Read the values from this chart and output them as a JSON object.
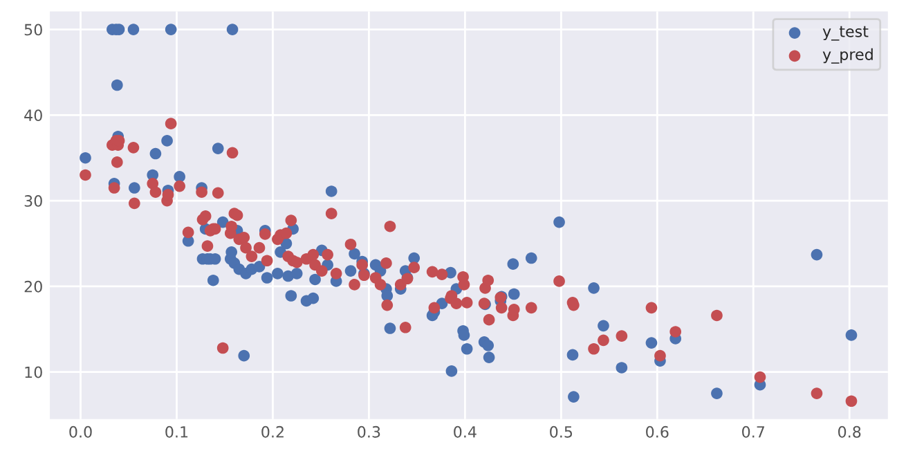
{
  "chart_data": {
    "type": "scatter",
    "x": [
      0.005,
      0.033,
      0.035,
      0.037,
      0.038,
      0.039,
      0.04,
      0.055,
      0.056,
      0.075,
      0.078,
      0.09,
      0.091,
      0.094,
      0.103,
      0.112,
      0.126,
      0.127,
      0.13,
      0.132,
      0.135,
      0.138,
      0.14,
      0.143,
      0.148,
      0.156,
      0.157,
      0.158,
      0.16,
      0.163,
      0.165,
      0.17,
      0.172,
      0.178,
      0.186,
      0.192,
      0.194,
      0.205,
      0.208,
      0.214,
      0.216,
      0.219,
      0.221,
      0.225,
      0.235,
      0.242,
      0.244,
      0.251,
      0.257,
      0.261,
      0.266,
      0.281,
      0.285,
      0.293,
      0.295,
      0.307,
      0.312,
      0.318,
      0.319,
      0.322,
      0.333,
      0.338,
      0.34,
      0.347,
      0.366,
      0.368,
      0.376,
      0.385,
      0.386,
      0.391,
      0.398,
      0.399,
      0.402,
      0.42,
      0.421,
      0.424,
      0.425,
      0.437,
      0.438,
      0.45,
      0.451,
      0.469,
      0.498,
      0.512,
      0.513,
      0.534,
      0.544,
      0.563,
      0.594,
      0.603,
      0.619,
      0.662,
      0.707,
      0.766,
      0.802
    ],
    "series": [
      {
        "name": "y_test",
        "color": "#4c72b0",
        "values": [
          35,
          50,
          32,
          50,
          43.5,
          37.5,
          50,
          50,
          31.5,
          33,
          35.5,
          37,
          31.2,
          50,
          32.8,
          25.3,
          31.5,
          23.2,
          26.7,
          23.2,
          23.2,
          20.7,
          23.2,
          36.1,
          27.5,
          23.2,
          24,
          50,
          22.7,
          26.5,
          22,
          11.9,
          21.5,
          22,
          22.3,
          26.5,
          21,
          21.5,
          24,
          25,
          21.2,
          18.9,
          26.7,
          21.5,
          18.3,
          18.6,
          20.8,
          24.2,
          22.5,
          31.1,
          20.6,
          21.8,
          23.8,
          22.9,
          21.5,
          22.5,
          21.8,
          19.7,
          18.9,
          15.1,
          19.7,
          21.8,
          21,
          23.3,
          16.6,
          17,
          18,
          21.6,
          10.1,
          19.7,
          14.8,
          14.3,
          12.7,
          13.5,
          17.9,
          13.1,
          11.7,
          18.3,
          18.8,
          22.6,
          19.1,
          23.3,
          27.5,
          12,
          7.1,
          19.8,
          15.4,
          10.5,
          13.4,
          11.3,
          13.9,
          7.5,
          8.5,
          23.7,
          14.3
        ]
      },
      {
        "name": "y_pred",
        "color": "#c44e52",
        "values": [
          33,
          36.5,
          31.5,
          37,
          34.5,
          36.5,
          37,
          36.2,
          29.7,
          32,
          31,
          30,
          30.7,
          39,
          31.7,
          26.3,
          31,
          27.8,
          28.2,
          24.7,
          26.5,
          26.7,
          26.7,
          30.9,
          12.8,
          26.2,
          27,
          35.6,
          28.5,
          28.3,
          25.5,
          25.7,
          24.5,
          23.5,
          24.5,
          26.1,
          23,
          25.5,
          26,
          26.2,
          23.5,
          27.7,
          23,
          22.8,
          23.2,
          23.7,
          22.5,
          21.8,
          23.7,
          28.5,
          21.5,
          24.9,
          20.2,
          22.5,
          21.3,
          21,
          20.2,
          22.7,
          17.8,
          27,
          20.2,
          15.2,
          20.9,
          22.2,
          21.7,
          17.5,
          21.4,
          18.6,
          18.9,
          18,
          21.1,
          20.2,
          18.1,
          18,
          19.8,
          20.7,
          16.1,
          18.7,
          17.5,
          16.6,
          17.3,
          17.5,
          20.6,
          18.1,
          17.8,
          12.7,
          13.7,
          14.2,
          17.5,
          11.9,
          14.7,
          16.6,
          9.4,
          7.5,
          6.6
        ]
      }
    ],
    "xlim": [
      -0.032,
      0.84
    ],
    "ylim": [
      4.5,
      52.1
    ],
    "xticks": [
      {
        "value": 0.0,
        "label": "0.0"
      },
      {
        "value": 0.1,
        "label": "0.1"
      },
      {
        "value": 0.2,
        "label": "0.2"
      },
      {
        "value": 0.3,
        "label": "0.3"
      },
      {
        "value": 0.4,
        "label": "0.4"
      },
      {
        "value": 0.5,
        "label": "0.5"
      },
      {
        "value": 0.6,
        "label": "0.6"
      },
      {
        "value": 0.7,
        "label": "0.7"
      },
      {
        "value": 0.8,
        "label": "0.8"
      }
    ],
    "yticks": [
      10,
      20,
      30,
      40,
      50
    ],
    "grid": true,
    "legend": "top right",
    "marker": "circle"
  }
}
